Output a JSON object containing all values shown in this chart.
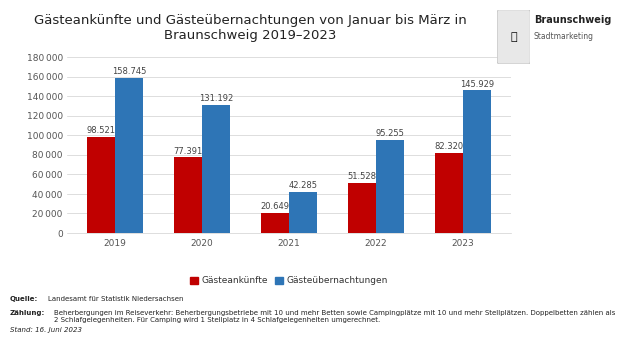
{
  "title": "Gästeankünfte und Gästeübernachtungen von Januar bis März in\nBraunschweig 2019–2023",
  "years": [
    "2019",
    "2020",
    "2021",
    "2022",
    "2023"
  ],
  "gaesteankunfte": [
    98521,
    77391,
    20649,
    51528,
    82320
  ],
  "gaesteuebernachtungen": [
    158745,
    131192,
    42285,
    95255,
    145929
  ],
  "color_ankunfte": "#c00000",
  "color_uebernachtungen": "#2e75b6",
  "ylim": [
    0,
    180000
  ],
  "yticks": [
    0,
    20000,
    40000,
    60000,
    80000,
    100000,
    120000,
    140000,
    160000,
    180000
  ],
  "legend_ankunfte": "Gästeankünfte",
  "legend_uebernachtungen": "Gästeübernachtungen",
  "quelle_bold": "Quelle:",
  "quelle_rest": " Landesamt für Statistik Niedersachsen",
  "zaehlung_bold": "Zählung:",
  "zaehlung_rest": " Beherbergungen im Reiseverkehr: Beherbergungsbetriebe mit 10 und mehr Betten sowie Campingplätze mit 10 und mehr Stellplätzen. Doppelbetten zählen als\n2 Schlafgelegenheiten. Für Camping wird 1 Stellplatz in 4 Schlafgelegenheiten umgerechnet.",
  "stand_text": "Stand: 16. Juni 2023",
  "logo_text_main": "Braunschweig",
  "logo_text_sub": "Stadtmarketing",
  "background_color": "#ffffff",
  "bar_width": 0.32,
  "title_fontsize": 9.5,
  "label_fontsize": 6,
  "tick_fontsize": 6.5,
  "footer_fontsize": 5.0,
  "legend_fontsize": 6.5
}
